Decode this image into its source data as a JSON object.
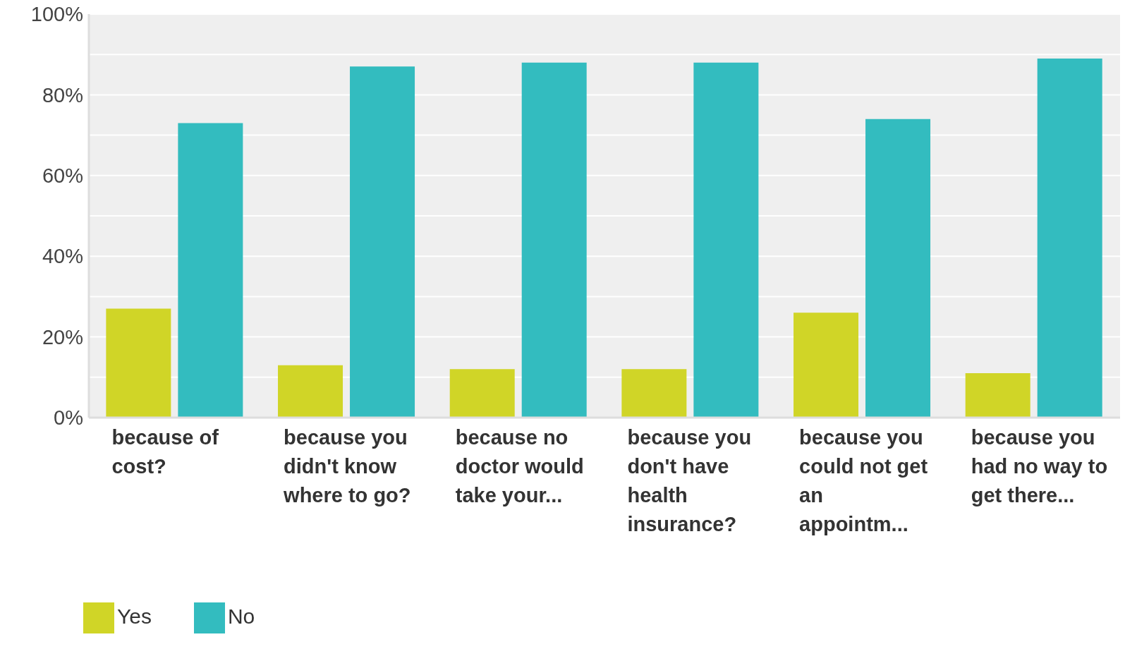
{
  "chart_data": {
    "type": "bar",
    "categories": [
      "because of cost?",
      "because you didn't know where to go?",
      "because no doctor would take your...",
      "because you don't have health insurance?",
      "because you could not get an appointm...",
      "because you had no way to get there..."
    ],
    "series": [
      {
        "name": "Yes",
        "color": "#d0d527",
        "values": [
          27,
          13,
          12,
          12,
          26,
          11
        ]
      },
      {
        "name": "No",
        "color": "#33bcbf",
        "values": [
          73,
          87,
          88,
          88,
          74,
          89
        ]
      }
    ],
    "ylim": [
      0,
      100
    ],
    "yticks": [
      {
        "value": 0,
        "label": "0%"
      },
      {
        "value": 10,
        "label": null
      },
      {
        "value": 20,
        "label": "20%"
      },
      {
        "value": 30,
        "label": null
      },
      {
        "value": 40,
        "label": "40%"
      },
      {
        "value": 50,
        "label": null
      },
      {
        "value": 60,
        "label": "60%"
      },
      {
        "value": 70,
        "label": null
      },
      {
        "value": 80,
        "label": "80%"
      },
      {
        "value": 90,
        "label": null
      },
      {
        "value": 100,
        "label": "100%"
      }
    ],
    "grid": "y",
    "legend": "bottom left"
  }
}
